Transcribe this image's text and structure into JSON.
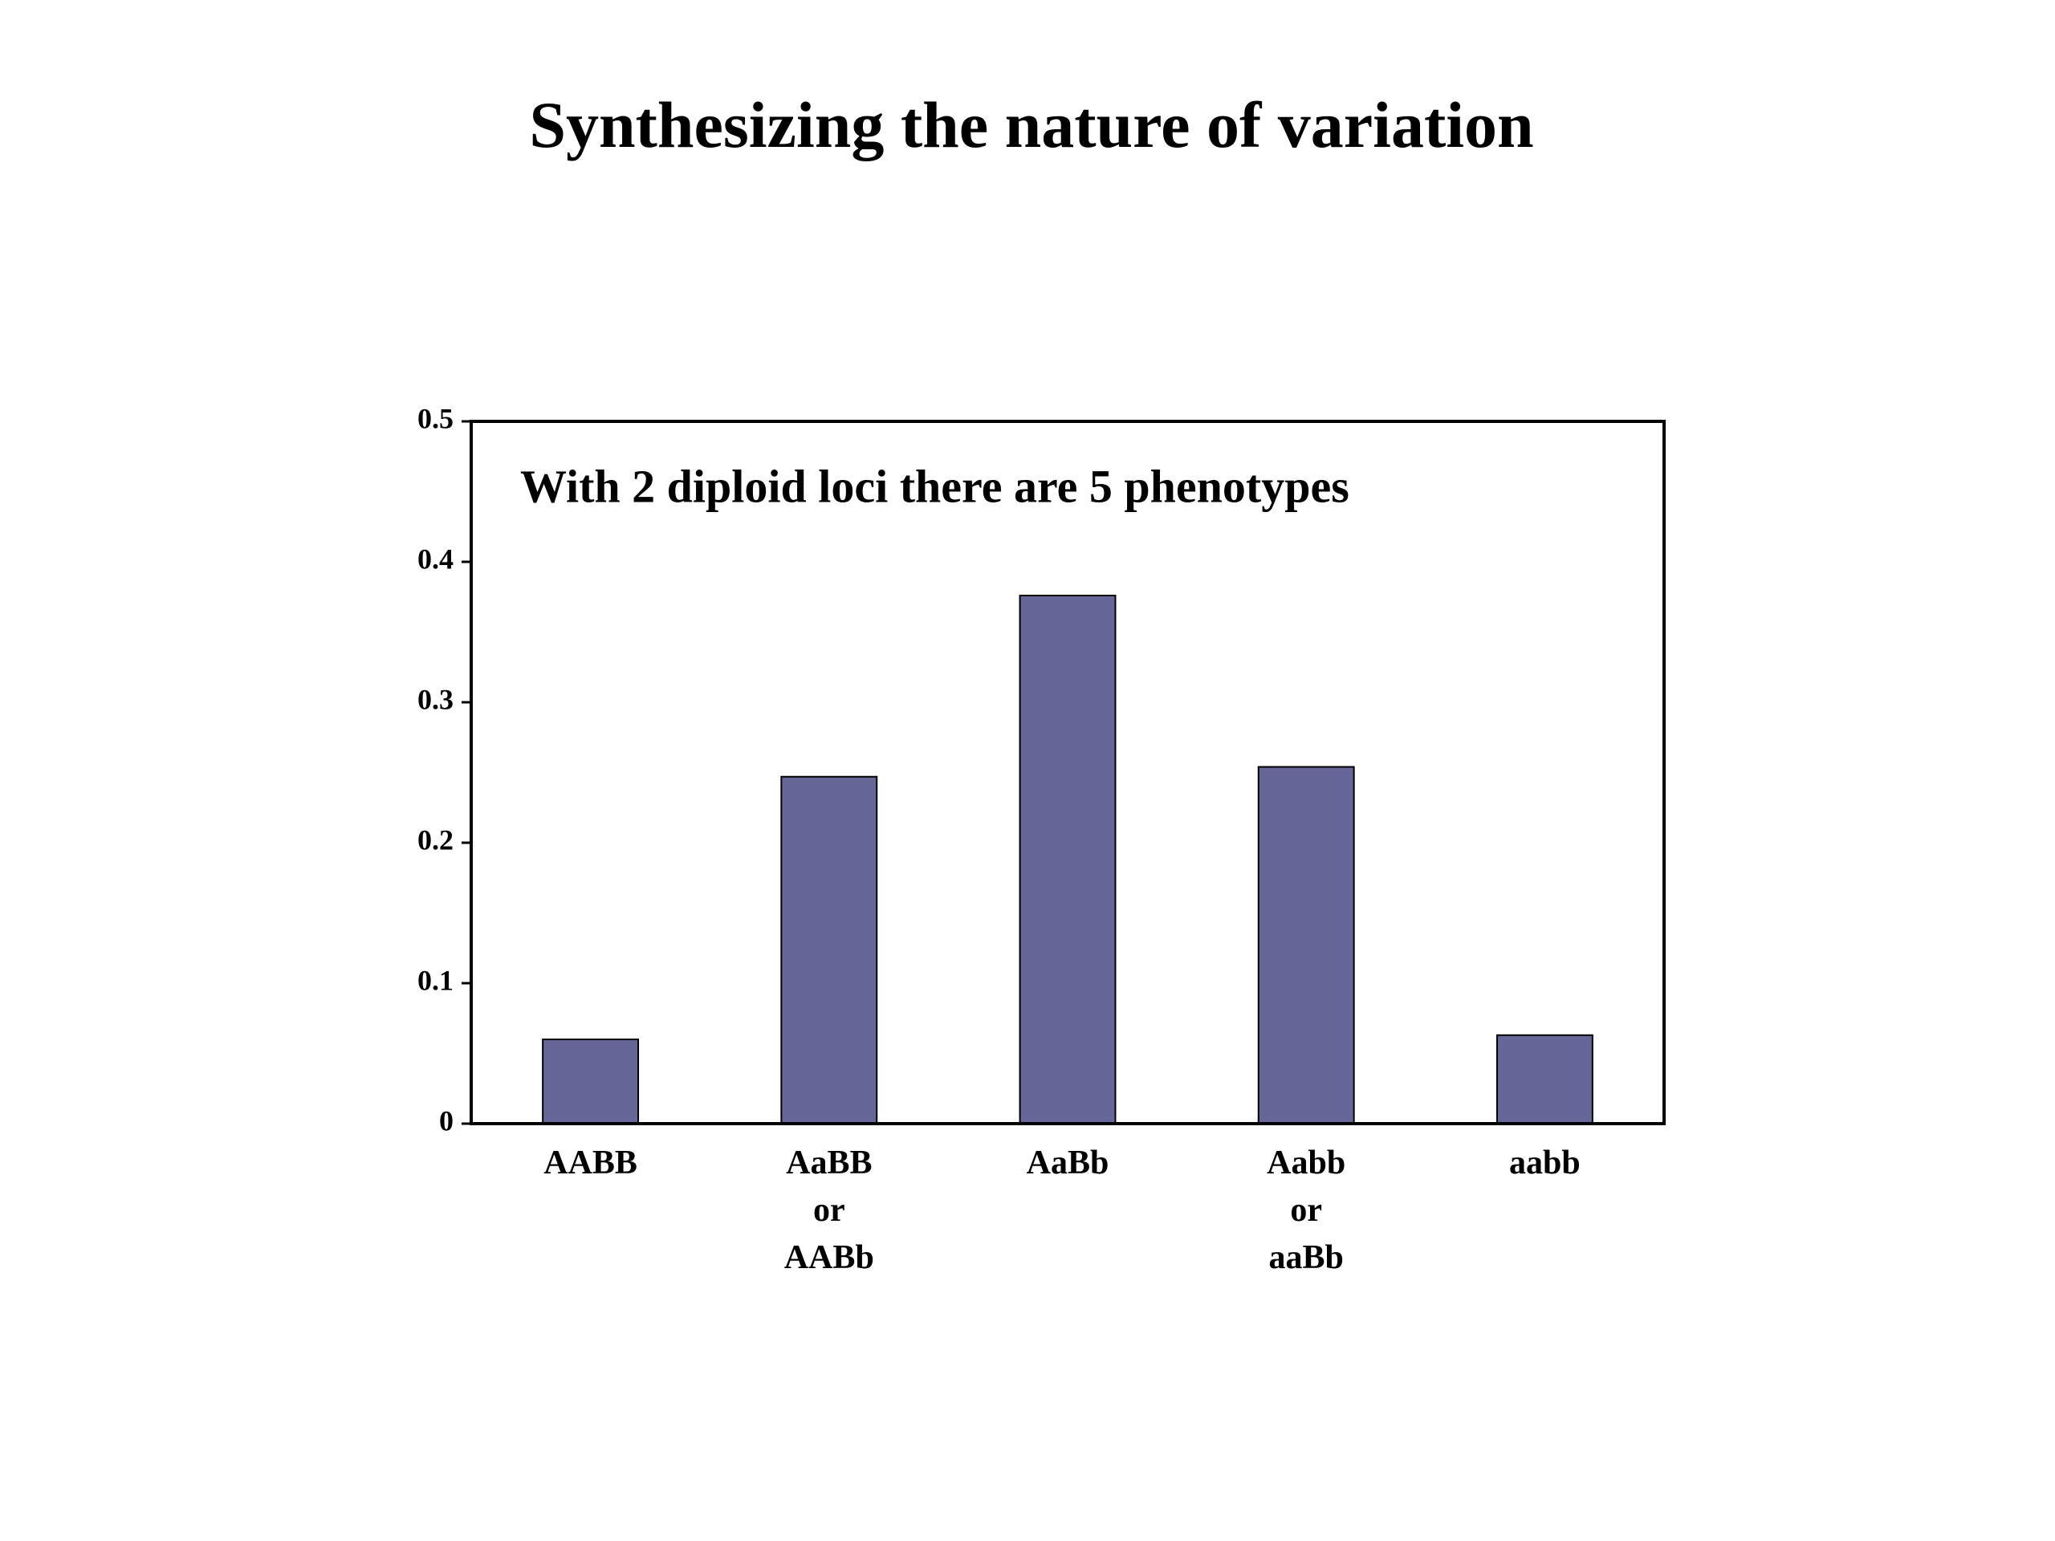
{
  "chart_data": {
    "type": "bar",
    "title": "Synthesizing the nature of variation",
    "annotation": "With 2 diploid loci there are 5 phenotypes",
    "categories": [
      "AABB",
      "AaBB\nor\nAABb",
      "AaBb",
      "Aabb\nor\naaBb",
      "aabb"
    ],
    "values": [
      0.06,
      0.247,
      0.376,
      0.254,
      0.063
    ],
    "color": "#666699",
    "ylim": [
      0,
      0.5
    ],
    "yticks": [
      0,
      0.1,
      0.2,
      0.3,
      0.4,
      0.5
    ],
    "grid": false
  }
}
